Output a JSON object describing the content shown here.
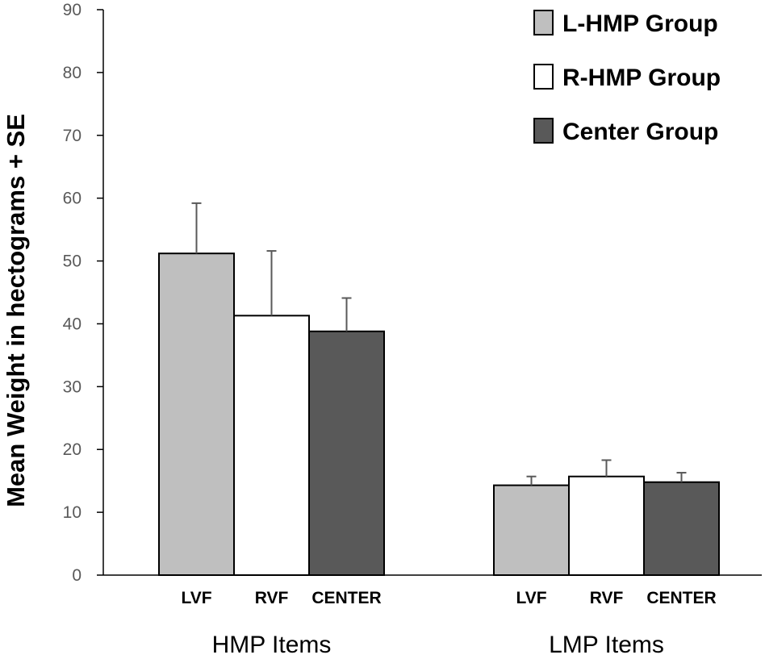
{
  "chart_data": {
    "type": "bar",
    "title": "",
    "ylabel": "Mean Weight in hectograms + SE",
    "ylim": [
      0,
      90
    ],
    "yticks": [
      0,
      10,
      20,
      30,
      40,
      50,
      60,
      70,
      80,
      90
    ],
    "grid": false,
    "legend_position": "top-right",
    "groups": [
      {
        "name": "HMP Items",
        "categories": [
          "LVF",
          "RVF",
          "CENTER"
        ]
      },
      {
        "name": "LMP Items",
        "categories": [
          "LVF",
          "RVF",
          "CENTER"
        ]
      }
    ],
    "series": [
      {
        "name": "L-HMP Group",
        "color": "#bfbfbf",
        "values": [
          51.2,
          14.3
        ],
        "errors": [
          8.0,
          1.4
        ]
      },
      {
        "name": "R-HMP Group",
        "color": "#ffffff",
        "values": [
          41.3,
          15.7
        ],
        "errors": [
          10.3,
          2.6
        ]
      },
      {
        "name": "Center Group",
        "color": "#595959",
        "values": [
          38.8,
          14.8
        ],
        "errors": [
          5.3,
          1.5
        ]
      }
    ]
  }
}
